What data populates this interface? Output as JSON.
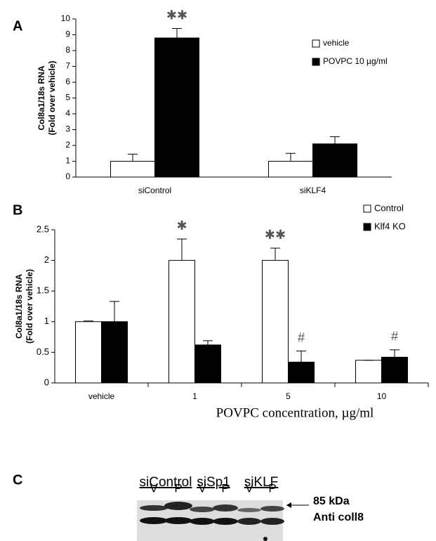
{
  "panels": [
    "A",
    "B",
    "C"
  ],
  "chart_data": [
    {
      "type": "bar",
      "ylabel": [
        "Col8a1/18s RNA",
        "(Fold over vehicle)"
      ],
      "categories": [
        "siControl",
        "siKLF4"
      ],
      "series": [
        {
          "name": "vehicle",
          "color": "#ffffff",
          "values": [
            1,
            1
          ],
          "errors": [
            0.45,
            0.5
          ],
          "annotations": [
            null,
            null
          ]
        },
        {
          "name": "POVPC  10 µg/ml",
          "color": "#000000",
          "values": [
            8.8,
            2.1
          ],
          "errors": [
            0.6,
            0.45
          ],
          "annotations": [
            "✱✱",
            null
          ]
        }
      ],
      "ylim": [
        0,
        10
      ],
      "yticks": [
        0,
        1,
        2,
        3,
        4,
        5,
        6,
        7,
        8,
        9,
        10
      ],
      "legend": "upper right"
    },
    {
      "type": "bar",
      "ylabel": [
        "Col8a1/18s RNA",
        "(Fold over vehicle)"
      ],
      "xlabel": "POVPC concentration, µg/ml",
      "categories": [
        "vehicle",
        "1",
        "5",
        "10"
      ],
      "series": [
        {
          "name": "Control",
          "color": "#ffffff",
          "values": [
            1,
            2,
            2,
            0.37
          ],
          "errors": [
            0.01,
            0.35,
            0.2,
            0
          ],
          "annotations": [
            null,
            "✱",
            "✱✱",
            null
          ]
        },
        {
          "name": "Klf4 KO",
          "color": "#000000",
          "values": [
            1,
            0.62,
            0.34,
            0.42
          ],
          "errors": [
            0.33,
            0.07,
            0.18,
            0.12
          ],
          "annotations": [
            null,
            null,
            "#",
            "#"
          ]
        }
      ],
      "ylim": [
        0,
        2.5
      ],
      "yticks": [
        0,
        0.5,
        1,
        1.5,
        2,
        2.5
      ],
      "legend": "upper right"
    }
  ],
  "blot": {
    "groups": [
      "siControl",
      "siSp1",
      "siKLF"
    ],
    "lanes": [
      "V",
      "P",
      "V",
      "P",
      "V",
      "P"
    ],
    "marker": "85 kDa",
    "antibody": "Anti coll8"
  }
}
